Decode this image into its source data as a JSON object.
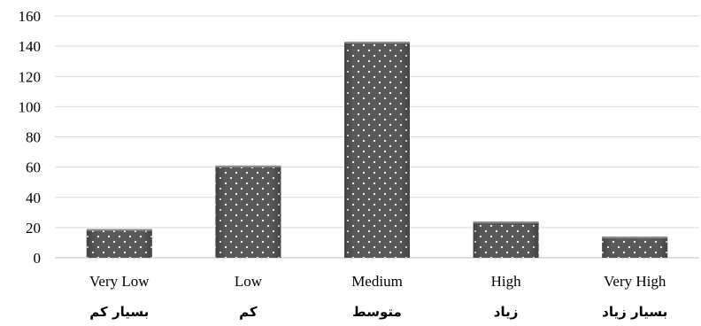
{
  "chart_data": {
    "type": "bar",
    "categories": [
      "Very Low",
      "Low",
      "Medium",
      "High",
      "Very High"
    ],
    "categories_fa": [
      "بسیار کم",
      "کم",
      "متوسط",
      "زیاد",
      "بسیار زیاد"
    ],
    "values": [
      19,
      61,
      143,
      24,
      14
    ],
    "ylim": [
      0,
      160
    ],
    "yticks": [
      0,
      20,
      40,
      60,
      80,
      100,
      120,
      140,
      160
    ],
    "grid": true,
    "legend": "none",
    "bar_color": "#595959",
    "bar_pattern": "white-dots"
  }
}
